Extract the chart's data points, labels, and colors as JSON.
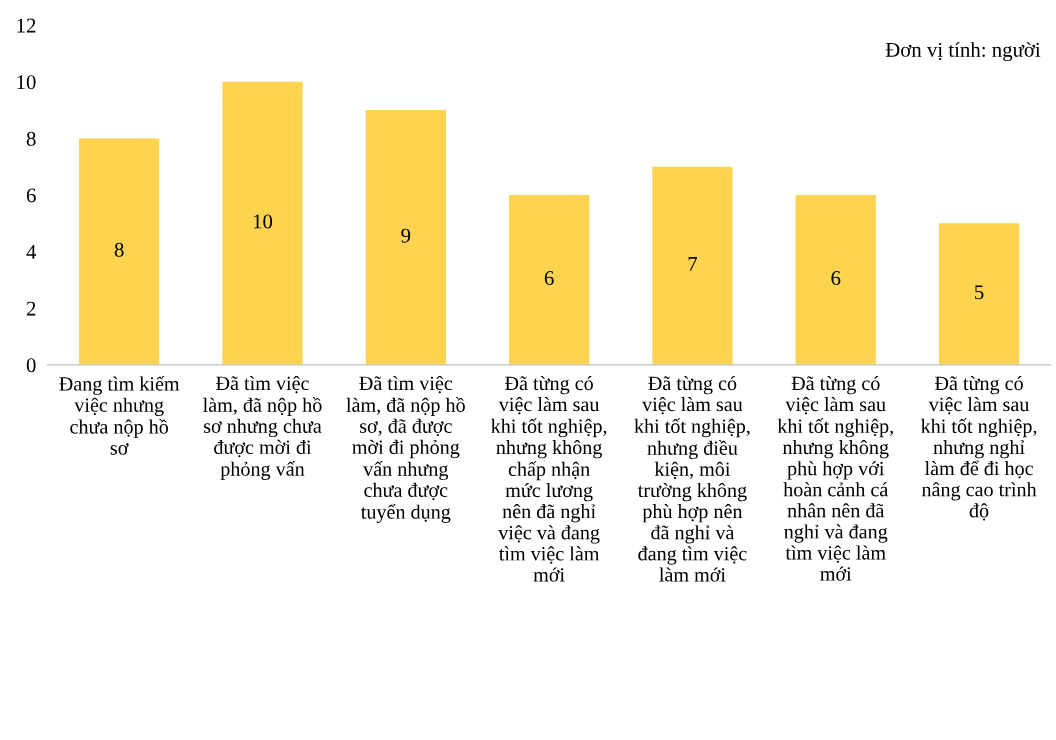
{
  "chart_data": {
    "type": "bar",
    "categories": [
      "Đang tìm kiếm\nviệc nhưng\nchưa nộp hồ\nsơ",
      "Đã tìm việc\nlàm, đã nộp hồ\nsơ nhưng chưa\nđược mời đi\nphỏng vấn",
      "Đã tìm việc\nlàm, đã nộp hồ\nsơ, đã được\nmời đi phỏng\nvấn nhưng\nchưa được\ntuyển dụng",
      "Đã từng có\nviệc làm sau\nkhi tốt nghiệp,\nnhưng không\nchấp nhận\nmức lương\nnên đã nghỉ\nviệc và đang\ntìm việc làm\nmới",
      "Đã từng có\nviệc làm sau\nkhi tốt nghiệp,\nnhưng điều\nkiện, môi\ntrường không\nphù hợp nên\nđã nghỉ và\nđang tìm việc\nlàm mới",
      "Đã từng có\nviệc làm sau\nkhi tốt nghiệp,\nnhưng không\nphù hợp với\nhoàn cảnh cá\nnhân nên đã\nnghỉ và đang\ntìm việc làm\nmới",
      "Đã từng có\nviệc làm sau\nkhi tốt nghiệp,\nnhưng nghỉ\nlàm để đi học\nnâng cao trình\nđộ"
    ],
    "values": [
      8,
      10,
      9,
      6,
      7,
      6,
      5
    ],
    "color": "#fdd34f",
    "ylim": [
      0,
      12
    ],
    "yticks": [
      0,
      2,
      4,
      6,
      8,
      10,
      12
    ],
    "grid": false,
    "data_labels": true,
    "annotations": [
      "Đơn vị tính: người"
    ]
  }
}
